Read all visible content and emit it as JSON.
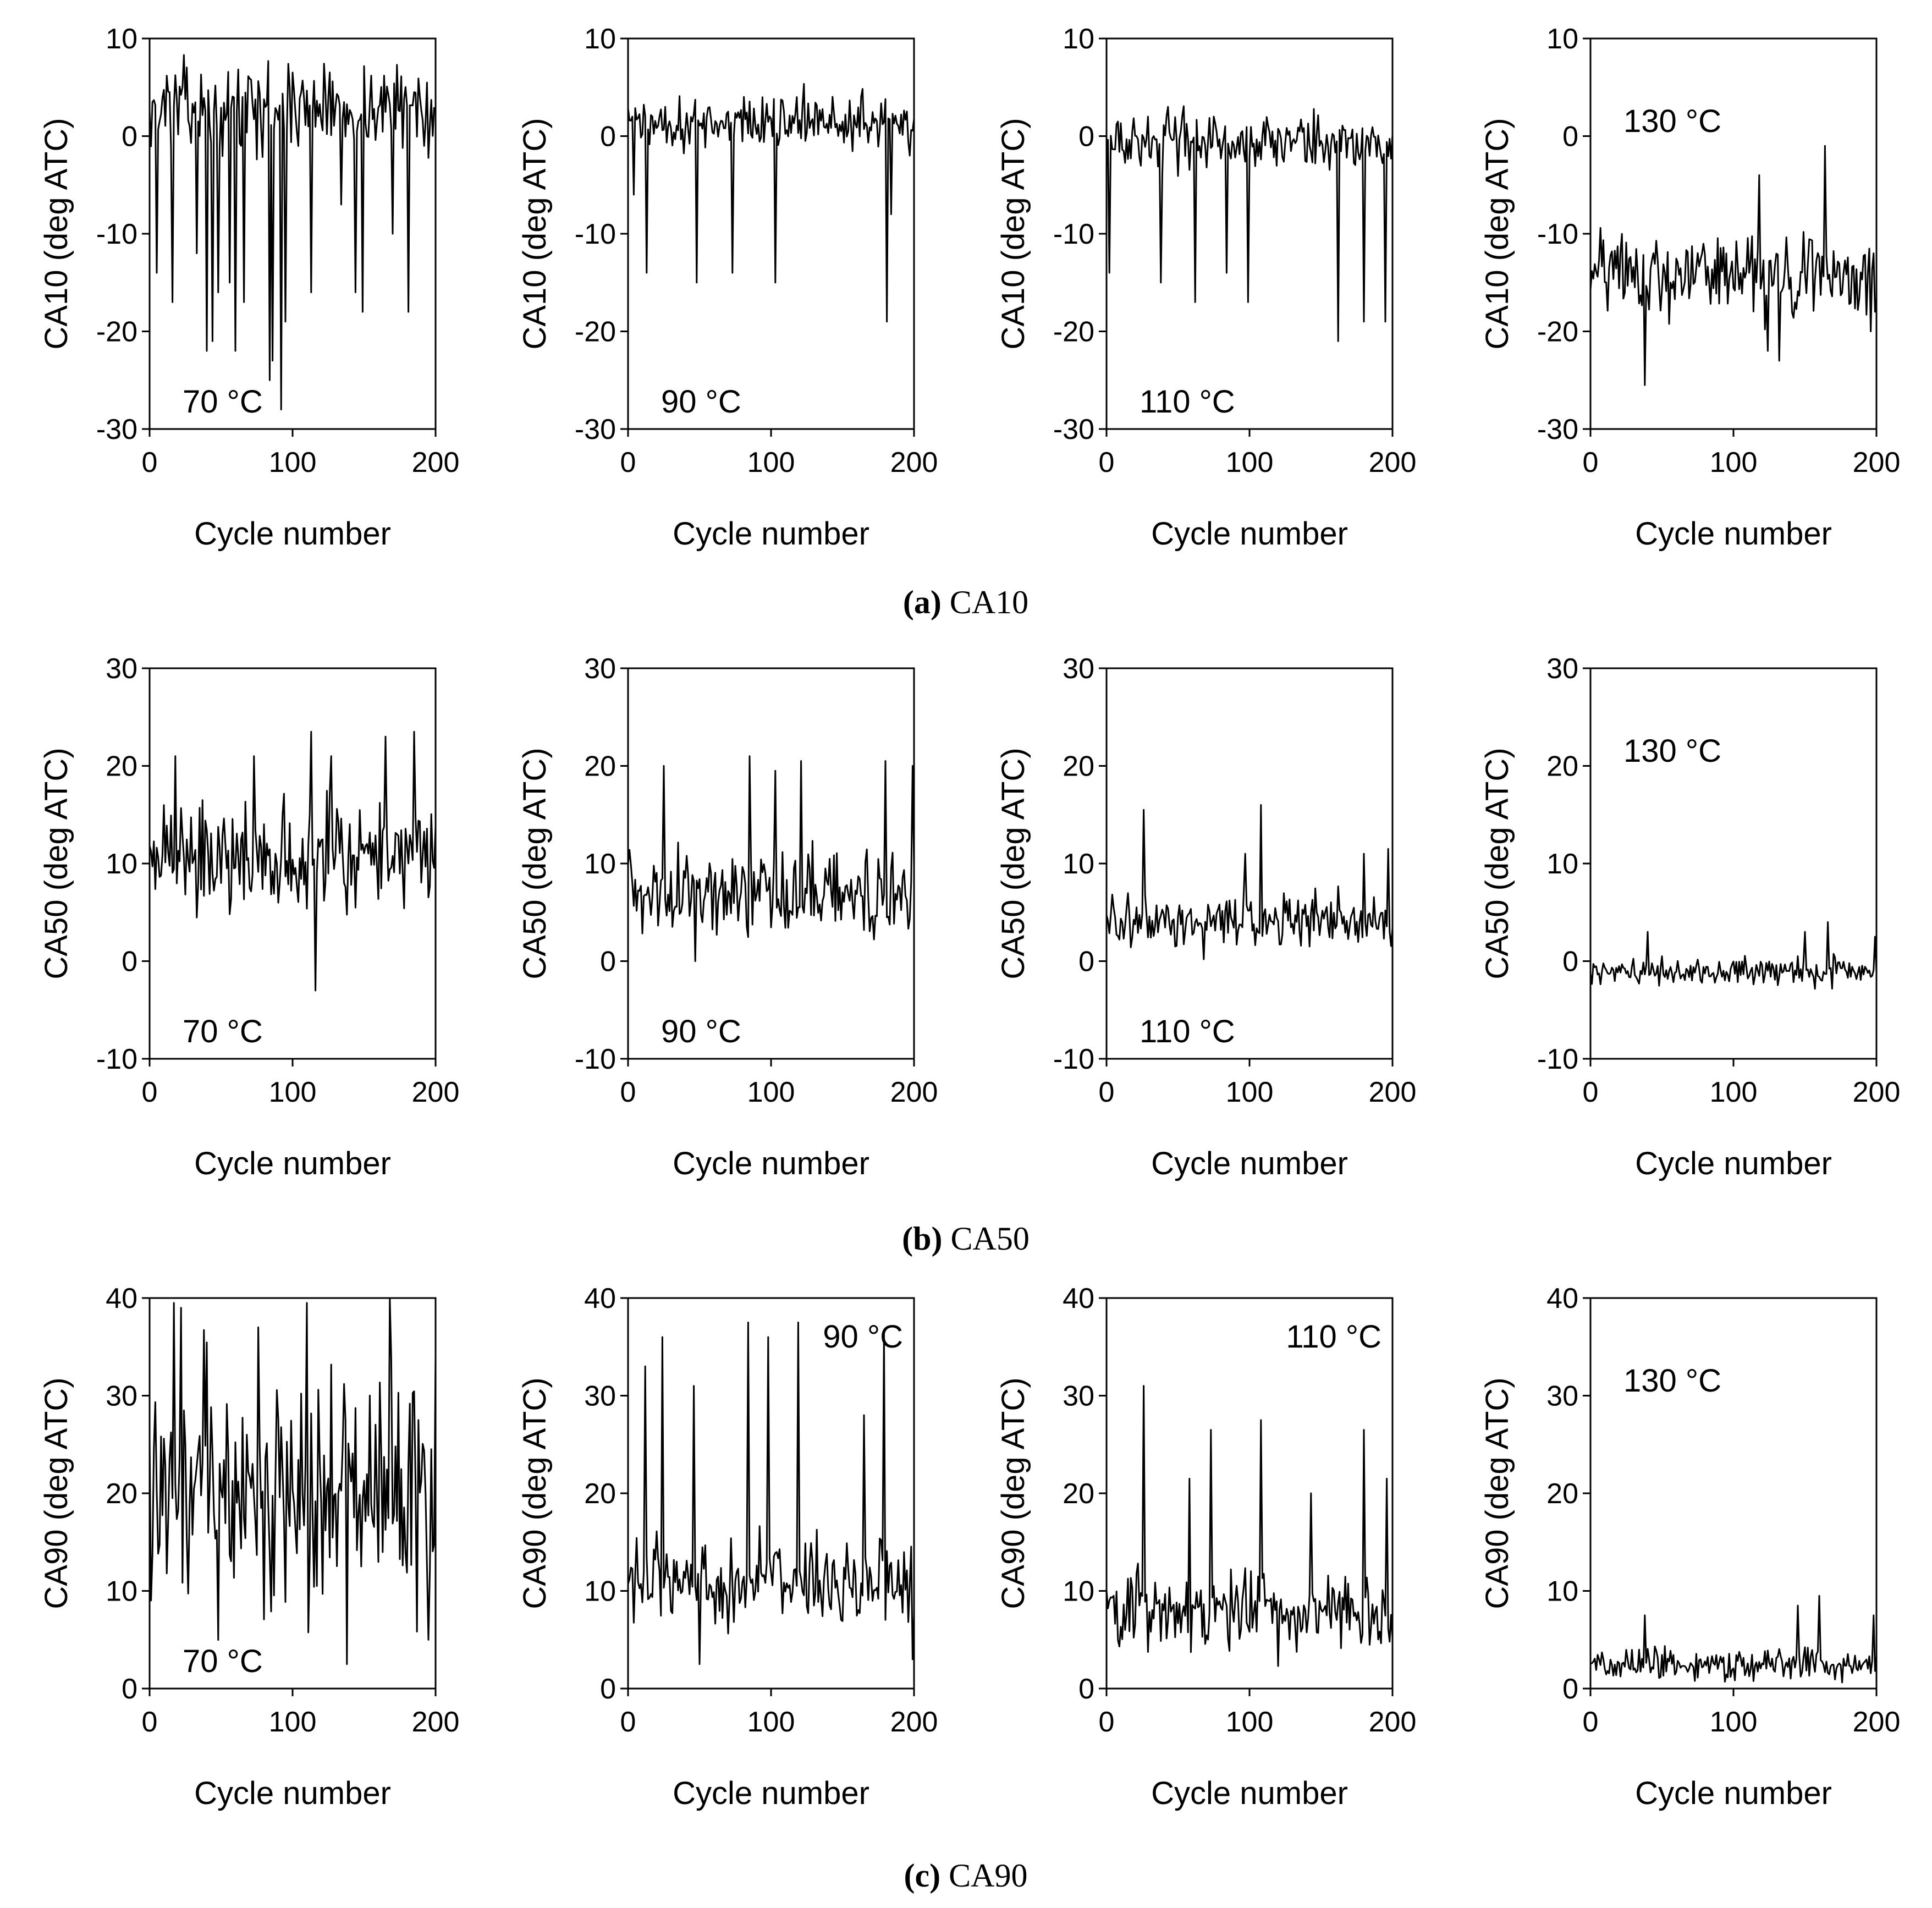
{
  "chart_data": [
    {
      "id": "ca10_70",
      "type": "line",
      "panel_label": "70 °C",
      "label_pos": "bottom-left",
      "ylabel": "CA10 (deg ATC)",
      "xlabel": "Cycle number",
      "xlim": [
        0,
        200
      ],
      "ylim": [
        -30,
        10
      ],
      "xticks": [
        "0",
        "100",
        "200"
      ],
      "yticks": [
        "-30",
        "-20",
        "-10",
        "0",
        "10"
      ],
      "series": {
        "baseline": 3,
        "noise": 3,
        "spikes": [
          [
            5,
            -14
          ],
          [
            16,
            -17
          ],
          [
            33,
            -12
          ],
          [
            40,
            -22
          ],
          [
            44,
            -21
          ],
          [
            48,
            -16
          ],
          [
            56,
            -15
          ],
          [
            60,
            -22
          ],
          [
            66,
            -17
          ],
          [
            84,
            -25
          ],
          [
            86,
            -23
          ],
          [
            92,
            -28
          ],
          [
            95,
            -19
          ],
          [
            113,
            -16
          ],
          [
            134,
            -7
          ],
          [
            144,
            -16
          ],
          [
            149,
            -18
          ],
          [
            170,
            -10
          ],
          [
            181,
            -18
          ],
          [
            192,
            -1
          ]
        ]
      }
    },
    {
      "id": "ca10_90",
      "type": "line",
      "panel_label": "90 °C",
      "label_pos": "bottom-left",
      "ylabel": "CA10 (deg ATC)",
      "xlabel": "Cycle number",
      "xlim": [
        0,
        200
      ],
      "ylim": [
        -30,
        10
      ],
      "xticks": [
        "0",
        "100",
        "200"
      ],
      "yticks": [
        "-30",
        "-20",
        "-10",
        "0",
        "10"
      ],
      "series": {
        "baseline": 1.5,
        "noise": 2,
        "spikes": [
          [
            4,
            -6
          ],
          [
            13,
            -14
          ],
          [
            48,
            -15
          ],
          [
            73,
            -14
          ],
          [
            103,
            -15
          ],
          [
            181,
            -19
          ],
          [
            184,
            -8
          ],
          [
            197,
            -2
          ]
        ]
      }
    },
    {
      "id": "ca10_110",
      "type": "line",
      "panel_label": "110 °C",
      "label_pos": "bottom-left",
      "ylabel": "CA10 (deg ATC)",
      "xlabel": "Cycle number",
      "xlim": [
        0,
        200
      ],
      "ylim": [
        -30,
        10
      ],
      "xticks": [
        "0",
        "100",
        "200"
      ],
      "yticks": [
        "-30",
        "-20",
        "-10",
        "0",
        "10"
      ],
      "series": {
        "baseline": -0.5,
        "noise": 2,
        "spikes": [
          [
            2,
            -14
          ],
          [
            38,
            -15
          ],
          [
            62,
            -17
          ],
          [
            84,
            -14
          ],
          [
            99,
            -17
          ],
          [
            162,
            -21
          ],
          [
            180,
            -19
          ],
          [
            195,
            -19
          ]
        ]
      }
    },
    {
      "id": "ca10_130",
      "type": "line",
      "panel_label": "130 °C",
      "label_pos": "top-left",
      "ylabel": "CA10 (deg ATC)",
      "xlabel": "Cycle number",
      "xlim": [
        0,
        200
      ],
      "ylim": [
        -30,
        10
      ],
      "xticks": [
        "0",
        "100",
        "200"
      ],
      "yticks": [
        "-30",
        "-20",
        "-10",
        "0",
        "10"
      ],
      "series": {
        "baseline": -14,
        "noise": 3,
        "spikes": [
          [
            38,
            -25.5
          ],
          [
            118,
            -4
          ],
          [
            124,
            -22
          ],
          [
            132,
            -23
          ],
          [
            164,
            -1
          ],
          [
            196,
            -20
          ]
        ]
      }
    },
    {
      "id": "ca50_70",
      "type": "line",
      "panel_label": "70 °C",
      "label_pos": "bottom-left",
      "ylabel": "CA50 (deg ATC)",
      "xlabel": "Cycle number",
      "xlim": [
        0,
        200
      ],
      "ylim": [
        -10,
        30
      ],
      "xticks": [
        "0",
        "100",
        "200"
      ],
      "yticks": [
        "-10",
        "0",
        "10",
        "20",
        "30"
      ],
      "series": {
        "baseline": 11,
        "noise": 4,
        "spikes": [
          [
            18,
            21
          ],
          [
            73,
            21
          ],
          [
            113,
            23.5
          ],
          [
            116,
            -3
          ],
          [
            127,
            21
          ],
          [
            165,
            23
          ],
          [
            185,
            23.5
          ]
        ]
      }
    },
    {
      "id": "ca50_90",
      "type": "line",
      "panel_label": "90 °C",
      "label_pos": "bottom-left",
      "ylabel": "CA50 (deg ATC)",
      "xlabel": "Cycle number",
      "xlim": [
        0,
        200
      ],
      "ylim": [
        -10,
        30
      ],
      "xticks": [
        "0",
        "100",
        "200"
      ],
      "yticks": [
        "-10",
        "0",
        "10",
        "20",
        "30"
      ],
      "series": {
        "baseline": 7,
        "noise": 3,
        "spikes": [
          [
            25,
            20
          ],
          [
            47,
            0
          ],
          [
            85,
            21
          ],
          [
            103,
            19.5
          ],
          [
            121,
            20.5
          ],
          [
            180,
            20.5
          ],
          [
            199,
            20
          ]
        ]
      }
    },
    {
      "id": "ca50_110",
      "type": "line",
      "panel_label": "110 °C",
      "label_pos": "bottom-left",
      "ylabel": "CA50 (deg ATC)",
      "xlabel": "Cycle number",
      "xlim": [
        0,
        200
      ],
      "ylim": [
        -10,
        30
      ],
      "xticks": [
        "0",
        "100",
        "200"
      ],
      "yticks": [
        "-10",
        "0",
        "10",
        "20",
        "30"
      ],
      "series": {
        "baseline": 4,
        "noise": 2,
        "spikes": [
          [
            26,
            15.5
          ],
          [
            97,
            11
          ],
          [
            108,
            16
          ],
          [
            180,
            11
          ],
          [
            197,
            11.5
          ]
        ]
      }
    },
    {
      "id": "ca50_130",
      "type": "line",
      "panel_label": "130 °C",
      "label_pos": "top-left",
      "ylabel": "CA50 (deg ATC)",
      "xlabel": "Cycle number",
      "xlim": [
        0,
        200
      ],
      "ylim": [
        -10,
        30
      ],
      "xticks": [
        "0",
        "100",
        "200"
      ],
      "yticks": [
        "-10",
        "0",
        "10",
        "20",
        "30"
      ],
      "series": {
        "baseline": -1,
        "noise": 1,
        "spikes": [
          [
            40,
            3
          ],
          [
            150,
            3
          ],
          [
            166,
            4
          ],
          [
            199,
            2.5
          ]
        ]
      }
    },
    {
      "id": "ca90_70",
      "type": "line",
      "panel_label": "70 °C",
      "label_pos": "bottom-left",
      "ylabel": "CA90 (deg ATC)",
      "xlabel": "Cycle number",
      "xlim": [
        0,
        200
      ],
      "ylim": [
        0,
        40
      ],
      "xticks": [
        "0",
        "100",
        "200"
      ],
      "yticks": [
        "0",
        "10",
        "20",
        "30",
        "40"
      ],
      "series": {
        "baseline": 21,
        "noise": 9,
        "spikes": [
          [
            17,
            39.5
          ],
          [
            22,
            39
          ],
          [
            76,
            37
          ],
          [
            110,
            39.5
          ],
          [
            138,
            2.5
          ],
          [
            168,
            40
          ],
          [
            195,
            5
          ]
        ]
      }
    },
    {
      "id": "ca90_90",
      "type": "line",
      "panel_label": "90 °C",
      "label_pos": "top-right",
      "ylabel": "CA90 (deg ATC)",
      "xlabel": "Cycle number",
      "xlim": [
        0,
        200
      ],
      "ylim": [
        0,
        40
      ],
      "xticks": [
        "0",
        "100",
        "200"
      ],
      "yticks": [
        "0",
        "10",
        "20",
        "30",
        "40"
      ],
      "series": {
        "baseline": 11,
        "noise": 3,
        "spikes": [
          [
            12,
            33
          ],
          [
            24,
            36
          ],
          [
            46,
            31
          ],
          [
            50,
            2.5
          ],
          [
            84,
            37.5
          ],
          [
            98,
            36
          ],
          [
            119,
            37.5
          ],
          [
            165,
            28
          ],
          [
            179,
            36.5
          ],
          [
            199,
            3
          ]
        ]
      }
    },
    {
      "id": "ca90_110",
      "type": "line",
      "panel_label": "110 °C",
      "label_pos": "top-right",
      "ylabel": "CA90 (deg ATC)",
      "xlabel": "Cycle number",
      "xlim": [
        0,
        200
      ],
      "ylim": [
        0,
        40
      ],
      "xticks": [
        "0",
        "100",
        "200"
      ],
      "yticks": [
        "0",
        "10",
        "20",
        "30",
        "40"
      ],
      "series": {
        "baseline": 8,
        "noise": 3,
        "spikes": [
          [
            26,
            31
          ],
          [
            58,
            21.5
          ],
          [
            73,
            26.5
          ],
          [
            108,
            27.5
          ],
          [
            143,
            20
          ],
          [
            180,
            26.5
          ],
          [
            196,
            21.5
          ]
        ]
      }
    },
    {
      "id": "ca90_130",
      "type": "line",
      "panel_label": "130 °C",
      "label_pos": "top-left",
      "ylabel": "CA90 (deg ATC)",
      "xlabel": "Cycle number",
      "xlim": [
        0,
        200
      ],
      "ylim": [
        0,
        40
      ],
      "xticks": [
        "0",
        "100",
        "200"
      ],
      "yticks": [
        "0",
        "10",
        "20",
        "30",
        "40"
      ],
      "series": {
        "baseline": 2.5,
        "noise": 1.2,
        "spikes": [
          [
            38,
            7.5
          ],
          [
            145,
            8.5
          ],
          [
            160,
            9.5
          ],
          [
            198,
            7.5
          ]
        ]
      }
    }
  ],
  "captions": [
    {
      "letter": "a",
      "text": " CA10"
    },
    {
      "letter": "b",
      "text": " CA50"
    },
    {
      "letter": "c",
      "text": " CA90"
    }
  ]
}
